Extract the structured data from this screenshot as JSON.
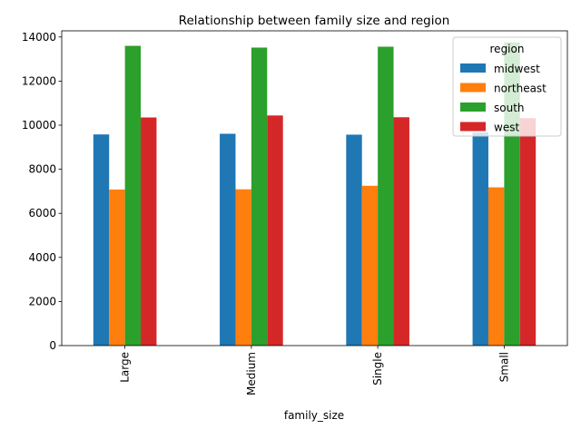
{
  "chart_data": {
    "type": "bar",
    "title": "Relationship between family size and region",
    "xlabel": "family_size",
    "ylabel": "",
    "categories": [
      "Large",
      "Medium",
      "Single",
      "Small"
    ],
    "series": [
      {
        "name": "midwest",
        "color": "#1f77b4",
        "values": [
          9580,
          9610,
          9570,
          9680
        ]
      },
      {
        "name": "northeast",
        "color": "#ff7f0e",
        "values": [
          7080,
          7090,
          7250,
          7180
        ]
      },
      {
        "name": "south",
        "color": "#2ca02c",
        "values": [
          13600,
          13520,
          13560,
          13760
        ]
      },
      {
        "name": "west",
        "color": "#d62728",
        "values": [
          10350,
          10440,
          10360,
          10320
        ]
      }
    ],
    "ylim": [
      0,
      14280
    ],
    "yticks": [
      0,
      2000,
      4000,
      6000,
      8000,
      10000,
      12000,
      14000
    ],
    "grid": false,
    "legend": {
      "title": "region",
      "position": "top-right"
    }
  }
}
